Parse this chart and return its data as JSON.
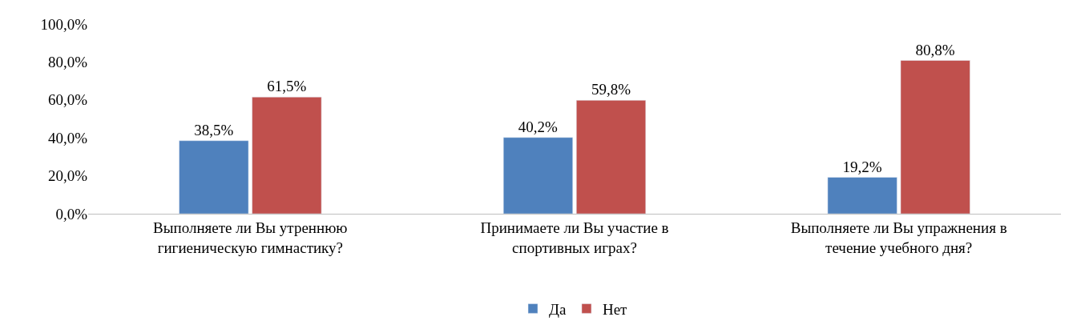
{
  "chart_data": {
    "type": "bar",
    "categories": [
      "Выполняете ли Вы утреннюю гигиеническую гимнастику?",
      "Принимаете ли Вы участие в спортивных играх?",
      "Выполняете ли Вы упражнения в течение учебного дня?"
    ],
    "series": [
      {
        "name": "Да",
        "color": "#4f81bd",
        "values": [
          38.5,
          40.2,
          19.2
        ],
        "value_labels": [
          "38,5%",
          "40,2%",
          "19,2%"
        ]
      },
      {
        "name": "Нет",
        "color": "#c0504d",
        "values": [
          61.5,
          59.8,
          80.8
        ],
        "value_labels": [
          "61,5%",
          "59,8%",
          "80,8%"
        ]
      }
    ],
    "ylim": [
      0,
      100
    ],
    "yticks": [
      {
        "value": 0,
        "label": "0,0%"
      },
      {
        "value": 20,
        "label": "20,0%"
      },
      {
        "value": 40,
        "label": "40,0%"
      },
      {
        "value": 60,
        "label": "60,0%"
      },
      {
        "value": 80,
        "label": "80,0%"
      },
      {
        "value": 100,
        "label": "100,0%"
      }
    ],
    "legend": "bottom"
  }
}
